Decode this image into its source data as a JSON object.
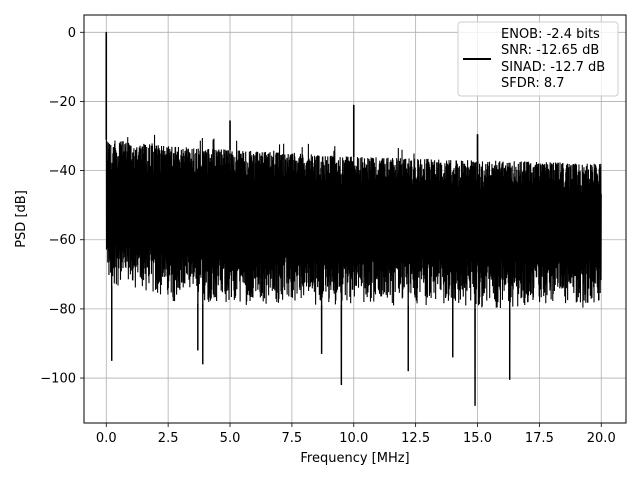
{
  "chart_data": {
    "type": "line",
    "title": "",
    "xlabel": "Frequency [MHz]",
    "ylabel": "PSD [dB]",
    "xlim": [
      -0.9,
      21.0
    ],
    "ylim": [
      -113,
      5
    ],
    "grid": true,
    "legend_placement": "top-right",
    "xticks": [
      0.0,
      2.5,
      5.0,
      7.5,
      10.0,
      12.5,
      15.0,
      17.5,
      20.0
    ],
    "xtick_labels": [
      "0.0",
      "2.5",
      "5.0",
      "7.5",
      "10.0",
      "12.5",
      "15.0",
      "17.5",
      "20.0"
    ],
    "yticks": [
      0,
      -20,
      -40,
      -60,
      -80,
      -100
    ],
    "ytick_labels": [
      "0",
      "−20",
      "−40",
      "−60",
      "−80",
      "−100"
    ],
    "legend_entries": [
      "ENOB: -2.4 bits",
      "SNR: -12.65 dB",
      "SINAD: -12.7 dB",
      "SFDR: 8.7"
    ],
    "series_color": "#000000",
    "noise_band": {
      "x": [
        0.0,
        2.5,
        5.0,
        7.5,
        10.0,
        12.5,
        15.0,
        17.5,
        20.0
      ],
      "upper": [
        -31,
        -33,
        -34,
        -35,
        -36,
        -36.5,
        -37,
        -37.5,
        -38
      ],
      "lower": [
        -73,
        -78,
        -79,
        -79,
        -79,
        -79,
        -80,
        -80,
        -80
      ]
    },
    "peaks": [
      {
        "x": 0.0,
        "y": 0
      },
      {
        "x": 5.0,
        "y": -25.5
      },
      {
        "x": 10.0,
        "y": -21
      },
      {
        "x": 15.0,
        "y": -29.5
      }
    ],
    "dips": [
      {
        "x": 0.22,
        "y": -95
      },
      {
        "x": 3.7,
        "y": -92
      },
      {
        "x": 3.9,
        "y": -96
      },
      {
        "x": 8.7,
        "y": -93
      },
      {
        "x": 9.5,
        "y": -102
      },
      {
        "x": 12.2,
        "y": -98
      },
      {
        "x": 14.0,
        "y": -94
      },
      {
        "x": 14.9,
        "y": -108
      },
      {
        "x": 16.3,
        "y": -100.5
      }
    ]
  }
}
